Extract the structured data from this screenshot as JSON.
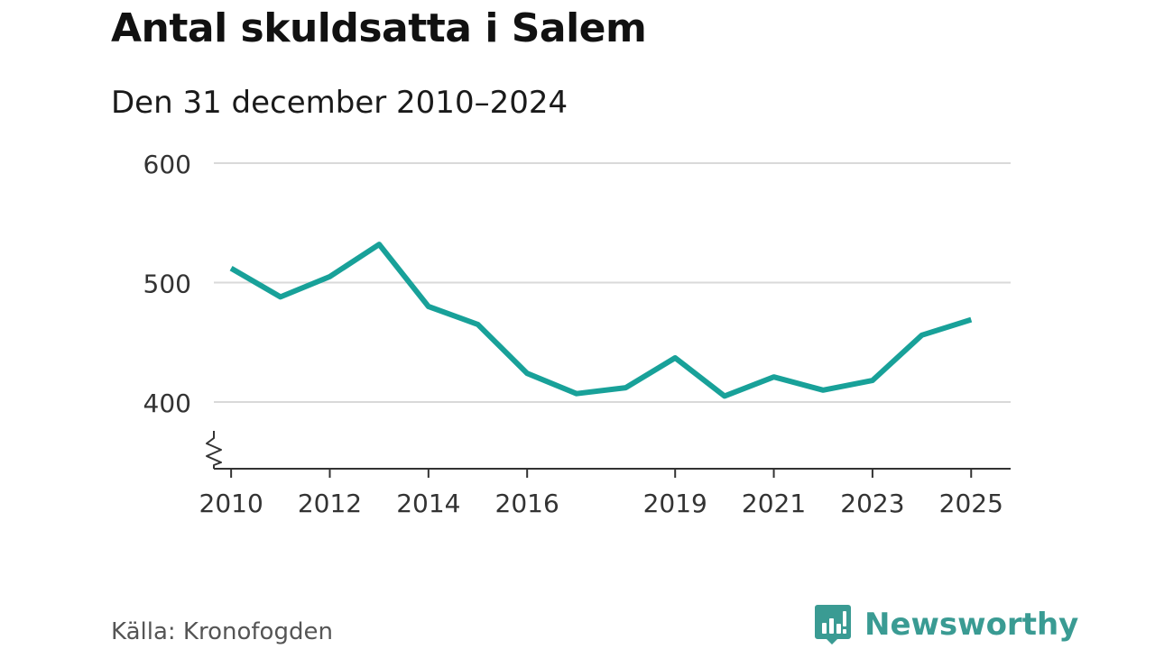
{
  "title": "Antal skuldsatta i Salem",
  "subtitle": "Den 31 december 2010–2024",
  "source": "Källa: Kronofogden",
  "brand": {
    "name": "Newsworthy",
    "icon": "newsworthy-logo-icon",
    "color": "#3a9b93"
  },
  "chart_data": {
    "type": "line",
    "title": "Antal skuldsatta i Salem",
    "subtitle": "Den 31 december 2010–2024",
    "xlabel": "",
    "ylabel": "",
    "xlim": [
      2009.65,
      2025.8
    ],
    "ylim": [
      345,
      600
    ],
    "y_axis_break": true,
    "grid": true,
    "y_ticks": [
      400,
      500,
      600
    ],
    "x_ticks": [
      2010,
      2012,
      2014,
      2016,
      2019,
      2021,
      2023,
      2025
    ],
    "line_color": "#18a199",
    "series": [
      {
        "name": "Antal skuldsatta",
        "x": [
          2010,
          2011,
          2012,
          2013,
          2014,
          2015,
          2016,
          2017,
          2018,
          2019,
          2020,
          2021,
          2022,
          2023,
          2024,
          2025
        ],
        "values": [
          512,
          488,
          505,
          532,
          480,
          465,
          424,
          407,
          412,
          437,
          405,
          421,
          410,
          418,
          456,
          469
        ]
      }
    ]
  }
}
